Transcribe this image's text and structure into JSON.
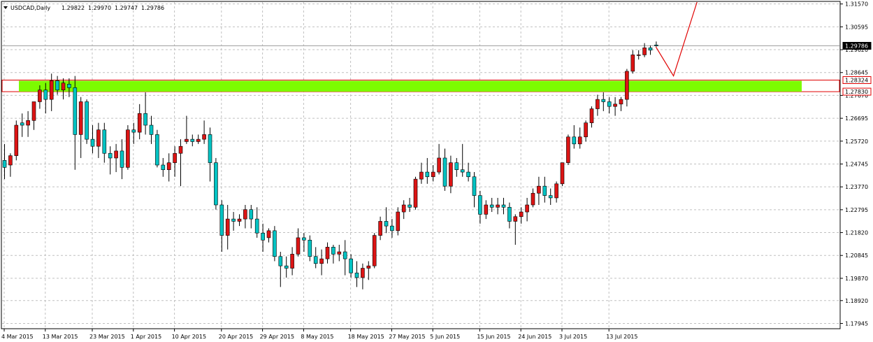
{
  "header": {
    "symbol": "USDCAD,Daily",
    "open": "1.29822",
    "high": "1.29970",
    "low": "1.29747",
    "close": "1.29786"
  },
  "chart_data": {
    "type": "candlestick",
    "symbol": "USDCAD",
    "timeframe": "Daily",
    "grid": true,
    "ylim": [
      1.1775,
      1.3165
    ],
    "y_ticks": [
      "1.31570",
      "1.30595",
      "1.29620",
      "1.28645",
      "1.27670",
      "1.26695",
      "1.25720",
      "1.24745",
      "1.23770",
      "1.22795",
      "1.21820",
      "1.20845",
      "1.19870",
      "1.18920",
      "1.17945"
    ],
    "x_ticks": [
      {
        "label": "4 Mar 2015",
        "bar": 0
      },
      {
        "label": "13 Mar 2015",
        "bar": 7
      },
      {
        "label": "23 Mar 2015",
        "bar": 15
      },
      {
        "label": "1 Apr 2015",
        "bar": 22
      },
      {
        "label": "10 Apr 2015",
        "bar": 29
      },
      {
        "label": "20 Apr 2015",
        "bar": 37
      },
      {
        "label": "29 Apr 2015",
        "bar": 44
      },
      {
        "label": "8 May 2015",
        "bar": 51
      },
      {
        "label": "18 May 2015",
        "bar": 59
      },
      {
        "label": "27 May 2015",
        "bar": 66
      },
      {
        "label": "5 Jun 2015",
        "bar": 73
      },
      {
        "label": "15 Jun 2015",
        "bar": 81
      },
      {
        "label": "24 Jun 2015",
        "bar": 88
      },
      {
        "label": "3 Jul 2015",
        "bar": 95
      },
      {
        "label": "13 Jul 2015",
        "bar": 103
      }
    ],
    "candles": [
      [
        1.249,
        1.256,
        1.241,
        1.246
      ],
      [
        1.247,
        1.252,
        1.242,
        1.251
      ],
      [
        1.251,
        1.266,
        1.249,
        1.264
      ],
      [
        1.265,
        1.269,
        1.259,
        1.264
      ],
      [
        1.264,
        1.27,
        1.259,
        1.266
      ],
      [
        1.266,
        1.274,
        1.262,
        1.274
      ],
      [
        1.274,
        1.281,
        1.271,
        1.279
      ],
      [
        1.279,
        1.282,
        1.269,
        1.275
      ],
      [
        1.275,
        1.286,
        1.27,
        1.283
      ],
      [
        1.283,
        1.285,
        1.277,
        1.279
      ],
      [
        1.279,
        1.284,
        1.275,
        1.282
      ],
      [
        1.2815,
        1.284,
        1.276,
        1.28
      ],
      [
        1.28,
        1.285,
        1.245,
        1.26
      ],
      [
        1.26,
        1.276,
        1.25,
        1.274
      ],
      [
        1.274,
        1.275,
        1.256,
        1.258
      ],
      [
        1.258,
        1.264,
        1.252,
        1.255
      ],
      [
        1.255,
        1.265,
        1.25,
        1.262
      ],
      [
        1.262,
        1.265,
        1.248,
        1.252
      ],
      [
        1.252,
        1.255,
        1.243,
        1.25
      ],
      [
        1.25,
        1.256,
        1.244,
        1.253
      ],
      [
        1.253,
        1.258,
        1.241,
        1.246
      ],
      [
        1.246,
        1.264,
        1.245,
        1.262
      ],
      [
        1.262,
        1.265,
        1.256,
        1.261
      ],
      [
        1.261,
        1.273,
        1.258,
        1.269
      ],
      [
        1.269,
        1.278,
        1.26,
        1.264
      ],
      [
        1.264,
        1.268,
        1.256,
        1.26
      ],
      [
        1.26,
        1.262,
        1.246,
        1.247
      ],
      [
        1.247,
        1.25,
        1.242,
        1.245
      ],
      [
        1.245,
        1.252,
        1.24,
        1.248
      ],
      [
        1.248,
        1.255,
        1.242,
        1.252
      ],
      [
        1.252,
        1.258,
        1.238,
        1.255
      ],
      [
        1.257,
        1.268,
        1.256,
        1.258
      ],
      [
        1.258,
        1.26,
        1.255,
        1.257
      ],
      [
        1.257,
        1.26,
        1.256,
        1.258
      ],
      [
        1.258,
        1.266,
        1.256,
        1.26
      ],
      [
        1.26,
        1.263,
        1.24,
        1.248
      ],
      [
        1.248,
        1.25,
        1.228,
        1.23
      ],
      [
        1.23,
        1.232,
        1.21,
        1.217
      ],
      [
        1.217,
        1.23,
        1.211,
        1.224
      ],
      [
        1.224,
        1.227,
        1.219,
        1.223
      ],
      [
        1.223,
        1.226,
        1.221,
        1.224
      ],
      [
        1.224,
        1.23,
        1.22,
        1.228
      ],
      [
        1.228,
        1.23,
        1.22,
        1.224
      ],
      [
        1.224,
        1.229,
        1.216,
        1.218
      ],
      [
        1.218,
        1.222,
        1.21,
        1.215
      ],
      [
        1.216,
        1.22,
        1.214,
        1.219
      ],
      [
        1.219,
        1.221,
        1.206,
        1.208
      ],
      [
        1.208,
        1.21,
        1.195,
        1.204
      ],
      [
        1.204,
        1.208,
        1.199,
        1.203
      ],
      [
        1.203,
        1.212,
        1.2,
        1.209
      ],
      [
        1.209,
        1.22,
        1.208,
        1.216
      ],
      [
        1.216,
        1.218,
        1.21,
        1.215
      ],
      [
        1.215,
        1.217,
        1.206,
        1.208
      ],
      [
        1.208,
        1.212,
        1.203,
        1.205
      ],
      [
        1.205,
        1.211,
        1.2,
        1.207
      ],
      [
        1.207,
        1.214,
        1.205,
        1.212
      ],
      [
        1.212,
        1.213,
        1.205,
        1.209
      ],
      [
        1.209,
        1.213,
        1.206,
        1.21
      ],
      [
        1.21,
        1.215,
        1.2,
        1.207
      ],
      [
        1.207,
        1.209,
        1.199,
        1.201
      ],
      [
        1.201,
        1.206,
        1.195,
        1.199
      ],
      [
        1.199,
        1.205,
        1.194,
        1.203
      ],
      [
        1.203,
        1.206,
        1.198,
        1.204
      ],
      [
        1.204,
        1.218,
        1.203,
        1.217
      ],
      [
        1.217,
        1.225,
        1.215,
        1.223
      ],
      [
        1.223,
        1.229,
        1.218,
        1.221
      ],
      [
        1.221,
        1.224,
        1.216,
        1.219
      ],
      [
        1.219,
        1.229,
        1.217,
        1.227
      ],
      [
        1.227,
        1.232,
        1.224,
        1.23
      ],
      [
        1.23,
        1.233,
        1.227,
        1.229
      ],
      [
        1.229,
        1.242,
        1.228,
        1.241
      ],
      [
        1.241,
        1.248,
        1.239,
        1.244
      ],
      [
        1.244,
        1.25,
        1.239,
        1.242
      ],
      [
        1.242,
        1.247,
        1.24,
        1.244
      ],
      [
        1.244,
        1.256,
        1.243,
        1.25
      ],
      [
        1.25,
        1.254,
        1.236,
        1.238
      ],
      [
        1.238,
        1.251,
        1.235,
        1.248
      ],
      [
        1.248,
        1.25,
        1.242,
        1.245
      ],
      [
        1.245,
        1.256,
        1.242,
        1.244
      ],
      [
        1.244,
        1.248,
        1.24,
        1.242
      ],
      [
        1.242,
        1.244,
        1.229,
        1.234
      ],
      [
        1.234,
        1.236,
        1.222,
        1.226
      ],
      [
        1.226,
        1.232,
        1.224,
        1.23
      ],
      [
        1.23,
        1.233,
        1.227,
        1.229
      ],
      [
        1.229,
        1.233,
        1.226,
        1.23
      ],
      [
        1.23,
        1.233,
        1.226,
        1.229
      ],
      [
        1.229,
        1.231,
        1.22,
        1.223
      ],
      [
        1.223,
        1.226,
        1.213,
        1.225
      ],
      [
        1.225,
        1.229,
        1.222,
        1.227
      ],
      [
        1.227,
        1.233,
        1.223,
        1.23
      ],
      [
        1.23,
        1.237,
        1.229,
        1.235
      ],
      [
        1.235,
        1.242,
        1.23,
        1.238
      ],
      [
        1.238,
        1.242,
        1.231,
        1.234
      ],
      [
        1.234,
        1.237,
        1.23,
        1.233
      ],
      [
        1.233,
        1.24,
        1.231,
        1.239
      ],
      [
        1.239,
        1.248,
        1.238,
        1.248
      ],
      [
        1.248,
        1.26,
        1.247,
        1.259
      ],
      [
        1.259,
        1.264,
        1.254,
        1.256
      ],
      [
        1.256,
        1.263,
        1.254,
        1.259
      ],
      [
        1.259,
        1.266,
        1.257,
        1.265
      ],
      [
        1.265,
        1.272,
        1.263,
        1.271
      ],
      [
        1.271,
        1.277,
        1.268,
        1.275
      ],
      [
        1.275,
        1.278,
        1.27,
        1.274
      ],
      [
        1.274,
        1.276,
        1.269,
        1.272
      ],
      [
        1.272,
        1.276,
        1.268,
        1.273
      ],
      [
        1.273,
        1.276,
        1.27,
        1.275
      ],
      [
        1.275,
        1.288,
        1.272,
        1.287
      ],
      [
        1.287,
        1.296,
        1.286,
        1.294
      ],
      [
        1.294,
        1.296,
        1.292,
        1.294
      ],
      [
        1.294,
        1.299,
        1.293,
        1.297
      ],
      [
        1.297,
        1.298,
        1.294,
        1.296
      ],
      [
        1.29822,
        1.2997,
        1.29747,
        1.29786
      ]
    ],
    "current_price": "1.29786",
    "support_zone": {
      "upper": 1.28324,
      "lower": 1.2783,
      "upper_label": "1.28324",
      "lower_label": "1.27830",
      "color": "#7cfc00"
    },
    "projection": [
      {
        "bar": 111,
        "price": 1.2974
      },
      {
        "bar": 114,
        "price": 1.285
      },
      {
        "bar": 118,
        "price": 1.3165
      }
    ],
    "colors": {
      "bull": "#dc1414",
      "bear": "#00c3c3",
      "grid": "#c0c0c0",
      "projection": "#e00000",
      "zone_border": "#e00000",
      "price_tag_bg": "#000000"
    }
  }
}
